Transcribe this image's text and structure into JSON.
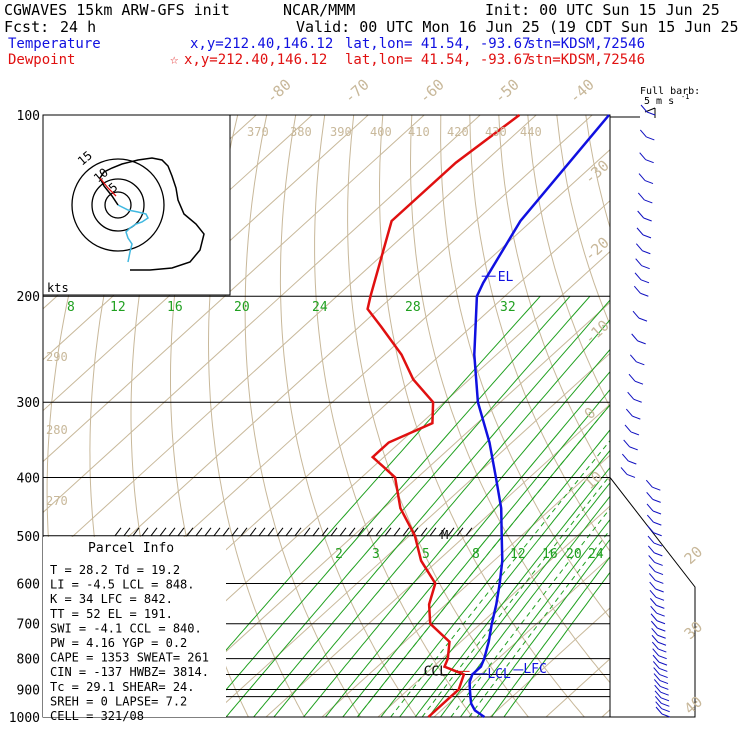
{
  "header": {
    "title": "CGWAVES 15km ARW-GFS init",
    "org": "NCAR/MMM",
    "init": "Init: 00 UTC Sun 15 Jun 25",
    "fcst_label": "Fcst:",
    "fcst_value": "24 h",
    "valid": "Valid: 00 UTC Mon 16 Jun 25 (19 CDT Sun 15 Jun 25)",
    "temp_line": {
      "name": "Temperature",
      "xy": "x,y=212.40,146.12",
      "latlon": "lat,lon= 41.54, -93.67",
      "stn": "stn=KDSM,72546"
    },
    "dew_line": {
      "name": "Dewpoint",
      "xy": "x,y=212.40,146.12",
      "latlon": "lat,lon= 41.54, -93.67",
      "stn": "stn=KDSM,72546"
    }
  },
  "colors": {
    "temperature": "#1010e0",
    "dewpoint": "#e01010",
    "isotherm": "#c8b89a",
    "mixing_ratio": "#20a020",
    "wind": "#1010c0",
    "hodo_cyan": "#40b8e0"
  },
  "icons": {
    "dew_marker": "star-icon"
  },
  "barb_key": {
    "line1": "Full barb:",
    "line2": "5 m s",
    "sup": "-1"
  },
  "hodograph": {
    "units": "kts",
    "ring_labels": [
      "5",
      "10",
      "15"
    ]
  },
  "theta_labels": [
    "370",
    "380",
    "390",
    "400",
    "410",
    "420",
    "430",
    "440"
  ],
  "theta_low_labels": [
    "290",
    "280",
    "270"
  ],
  "iso_top_labels": [
    "-80",
    "-70",
    "-60",
    "-50",
    "-40"
  ],
  "iso_side_labels": [
    "-30",
    "-20",
    "-10",
    "0",
    "10",
    "20",
    "30",
    "40"
  ],
  "mix_upper_labels": [
    "8",
    "12",
    "16",
    "20",
    "24",
    "28",
    "32"
  ],
  "mix_lower_labels": [
    "2",
    "3",
    "5",
    "8",
    "12",
    "16",
    "20",
    "24"
  ],
  "markers": {
    "el": "EL",
    "ccl": "CCL",
    "lcl": "LCL",
    "lfc": "LFC",
    "m": "M"
  },
  "parcel": {
    "title": "Parcel Info",
    "rows": [
      "T  =   28.2 Td =  19.2",
      "LI =   -4.5 LCL =  848.",
      "K  =     34 LFC = 842.",
      "TT =     52 EL  =  191.",
      "SWI =  -4.1 CCL = 840.",
      "PW =   4.16 YGP =   0.2",
      "CAPE =  1353 SWEAT=  261",
      "CIN =  -137 HWBZ= 3814.",
      "Tc =   29.1 SHEAR=  24.",
      "SREH =    0 LAPSE=  7.2",
      "CELL = 321/08"
    ]
  },
  "chart_data": {
    "type": "skew-t",
    "yaxis": "pressure (hPa)",
    "pressure_levels": [
      {
        "value": 100,
        "label": "100"
      },
      {
        "value": 200,
        "label": "200"
      },
      {
        "value": 300,
        "label": "300"
      },
      {
        "value": 400,
        "label": "400"
      },
      {
        "value": 500,
        "label": "500"
      },
      {
        "value": 600,
        "label": "600"
      },
      {
        "value": 700,
        "label": "700"
      },
      {
        "value": 800,
        "label": "800"
      },
      {
        "value": 900,
        "label": "900"
      },
      {
        "value": 1000,
        "label": "1000"
      }
    ],
    "extra_lines": [
      850,
      925
    ],
    "ylim": [
      1000,
      100
    ],
    "series": [
      {
        "name": "Temperature",
        "points": [
          [
            1000,
            29
          ],
          [
            975,
            26
          ],
          [
            950,
            24
          ],
          [
            925,
            22.5
          ],
          [
            900,
            21
          ],
          [
            875,
            19.5
          ],
          [
            850,
            18.5
          ],
          [
            825,
            18.5
          ],
          [
            800,
            17.5
          ],
          [
            750,
            15
          ],
          [
            700,
            12
          ],
          [
            650,
            9
          ],
          [
            600,
            5.5
          ],
          [
            550,
            1.5
          ],
          [
            500,
            -3.5
          ],
          [
            450,
            -9
          ],
          [
            400,
            -16
          ],
          [
            350,
            -24
          ],
          [
            300,
            -34
          ],
          [
            250,
            -44
          ],
          [
            200,
            -55
          ],
          [
            190,
            -56.5
          ],
          [
            150,
            -62
          ],
          [
            100,
            -67
          ]
        ]
      },
      {
        "name": "Dewpoint",
        "points": [
          [
            1000,
            19
          ],
          [
            925,
            19
          ],
          [
            900,
            19
          ],
          [
            850,
            17
          ],
          [
            825,
            12
          ],
          [
            800,
            11
          ],
          [
            750,
            8
          ],
          [
            700,
            1
          ],
          [
            650,
            -3
          ],
          [
            600,
            -6
          ],
          [
            550,
            -13
          ],
          [
            500,
            -19
          ],
          [
            450,
            -27
          ],
          [
            400,
            -34
          ],
          [
            370,
            -42
          ],
          [
            350,
            -42
          ],
          [
            325,
            -38
          ],
          [
            300,
            -42
          ],
          [
            275,
            -50
          ],
          [
            250,
            -57
          ],
          [
            225,
            -66
          ],
          [
            210,
            -72
          ],
          [
            200,
            -74
          ],
          [
            150,
            -85
          ],
          [
            120,
            -85
          ],
          [
            100,
            -83
          ]
        ]
      }
    ],
    "wind_pressures": [
      1000,
      980,
      960,
      940,
      920,
      900,
      880,
      860,
      840,
      820,
      800,
      780,
      760,
      740,
      720,
      700,
      680,
      660,
      640,
      620,
      600,
      580,
      560,
      540,
      520,
      500,
      480,
      460,
      440,
      420,
      400,
      380,
      360,
      340,
      320,
      300,
      280,
      260,
      240,
      220,
      200,
      190,
      180,
      170,
      160,
      150,
      140,
      130,
      120,
      110,
      100
    ]
  }
}
